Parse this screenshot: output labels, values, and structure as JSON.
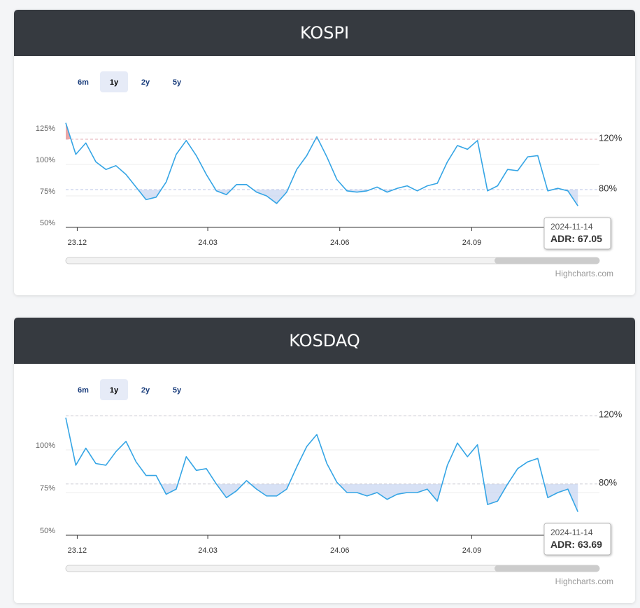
{
  "chart_data": [
    {
      "type": "line",
      "title": "KOSPI",
      "range_buttons": [
        "6m",
        "1y",
        "2y",
        "5y"
      ],
      "selected_range": "1y",
      "x": [
        "2023-11-23",
        "2023-11-30",
        "2023-12-07",
        "2023-12-14",
        "2023-12-21",
        "2023-12-28",
        "2024-01-04",
        "2024-01-11",
        "2024-01-18",
        "2024-01-25",
        "2024-02-01",
        "2024-02-08",
        "2024-02-15",
        "2024-02-22",
        "2024-02-29",
        "2024-03-07",
        "2024-03-14",
        "2024-03-21",
        "2024-03-28",
        "2024-04-04",
        "2024-04-11",
        "2024-04-18",
        "2024-04-25",
        "2024-05-02",
        "2024-05-09",
        "2024-05-16",
        "2024-05-23",
        "2024-05-30",
        "2024-06-06",
        "2024-06-13",
        "2024-06-20",
        "2024-06-27",
        "2024-07-04",
        "2024-07-11",
        "2024-07-18",
        "2024-07-25",
        "2024-08-01",
        "2024-08-08",
        "2024-08-15",
        "2024-08-22",
        "2024-08-29",
        "2024-09-05",
        "2024-09-12",
        "2024-09-19",
        "2024-09-26",
        "2024-10-03",
        "2024-10-10",
        "2024-10-17",
        "2024-10-24",
        "2024-10-31",
        "2024-11-07",
        "2024-11-14"
      ],
      "values": [
        133,
        108,
        117,
        102,
        96,
        99,
        92,
        82,
        72,
        74,
        86,
        108,
        119,
        107,
        92,
        79,
        76,
        84,
        84,
        78,
        75,
        69,
        78,
        96,
        107,
        122,
        106,
        88,
        79,
        78,
        79,
        82,
        78,
        81,
        83,
        79,
        83,
        85,
        102,
        115,
        112,
        119,
        79,
        83,
        96,
        95,
        106,
        107,
        79,
        81,
        79,
        67.05
      ],
      "color": "#35a5e5",
      "below_color": "#c9d7f2",
      "above_color": "#eba7a7",
      "xlim": [
        "2023-11-23",
        "2024-11-29"
      ],
      "xticks": [
        {
          "value": "2023-12-01",
          "label": "23.12"
        },
        {
          "value": "2024-03-01",
          "label": "24.03"
        },
        {
          "value": "2024-06-01",
          "label": "24.06"
        },
        {
          "value": "2024-09-01",
          "label": "24.09"
        }
      ],
      "ylim": [
        50,
        150
      ],
      "yticks": [
        {
          "value": 50,
          "label": "50%"
        },
        {
          "value": 75,
          "label": "75%"
        },
        {
          "value": 100,
          "label": "100%"
        },
        {
          "value": 125,
          "label": "125%"
        }
      ],
      "grid": true,
      "plot_lines": [
        {
          "value": 120,
          "label": "120%",
          "color": "#e3aeb4"
        },
        {
          "value": 80,
          "label": "80%",
          "color": "#b9c3e6"
        }
      ],
      "tooltip": {
        "date": "2024-11-14",
        "label": "ADR:",
        "value": 67.05
      },
      "credits": "Highcharts.com"
    },
    {
      "type": "line",
      "title": "KOSDAQ",
      "range_buttons": [
        "6m",
        "1y",
        "2y",
        "5y"
      ],
      "selected_range": "1y",
      "x": [
        "2023-11-23",
        "2023-11-30",
        "2023-12-07",
        "2023-12-14",
        "2023-12-21",
        "2023-12-28",
        "2024-01-04",
        "2024-01-11",
        "2024-01-18",
        "2024-01-25",
        "2024-02-01",
        "2024-02-08",
        "2024-02-15",
        "2024-02-22",
        "2024-02-29",
        "2024-03-07",
        "2024-03-14",
        "2024-03-21",
        "2024-03-28",
        "2024-04-04",
        "2024-04-11",
        "2024-04-18",
        "2024-04-25",
        "2024-05-02",
        "2024-05-09",
        "2024-05-16",
        "2024-05-23",
        "2024-05-30",
        "2024-06-06",
        "2024-06-13",
        "2024-06-20",
        "2024-06-27",
        "2024-07-04",
        "2024-07-11",
        "2024-07-18",
        "2024-07-25",
        "2024-08-01",
        "2024-08-08",
        "2024-08-15",
        "2024-08-22",
        "2024-08-29",
        "2024-09-05",
        "2024-09-12",
        "2024-09-19",
        "2024-09-26",
        "2024-10-03",
        "2024-10-10",
        "2024-10-17",
        "2024-10-24",
        "2024-10-31",
        "2024-11-07",
        "2024-11-14"
      ],
      "values": [
        118.9,
        91,
        101,
        92,
        91,
        99,
        105,
        93,
        85,
        85,
        74,
        77,
        96,
        88,
        89,
        80,
        72,
        76,
        82,
        77,
        73,
        73,
        77,
        90,
        102,
        109,
        92,
        81,
        75,
        75,
        73,
        75,
        71,
        74,
        75,
        75,
        77,
        70,
        91,
        104,
        96,
        103,
        68,
        70,
        80,
        89,
        93,
        95,
        72,
        75,
        77,
        63.69
      ],
      "color": "#35a5e5",
      "below_color": "#c9d7f2",
      "above_color": "#eba7a7",
      "xlim": [
        "2023-11-23",
        "2024-11-29"
      ],
      "xticks": [
        {
          "value": "2023-12-01",
          "label": "23.12"
        },
        {
          "value": "2024-03-01",
          "label": "24.03"
        },
        {
          "value": "2024-06-01",
          "label": "24.06"
        },
        {
          "value": "2024-09-01",
          "label": "24.09"
        }
      ],
      "ylim": [
        50,
        125
      ],
      "yticks": [
        {
          "value": 50,
          "label": "50%"
        },
        {
          "value": 75,
          "label": "75%"
        },
        {
          "value": 100,
          "label": "100%"
        }
      ],
      "grid": true,
      "plot_lines": [
        {
          "value": 120,
          "label": "120%",
          "color": "#c8c8d0"
        },
        {
          "value": 80,
          "label": "80%",
          "color": "#c8c8d0"
        }
      ],
      "tooltip": {
        "date": "2024-11-14",
        "label": "ADR:",
        "value": 63.69
      },
      "credits": "Highcharts.com"
    }
  ]
}
